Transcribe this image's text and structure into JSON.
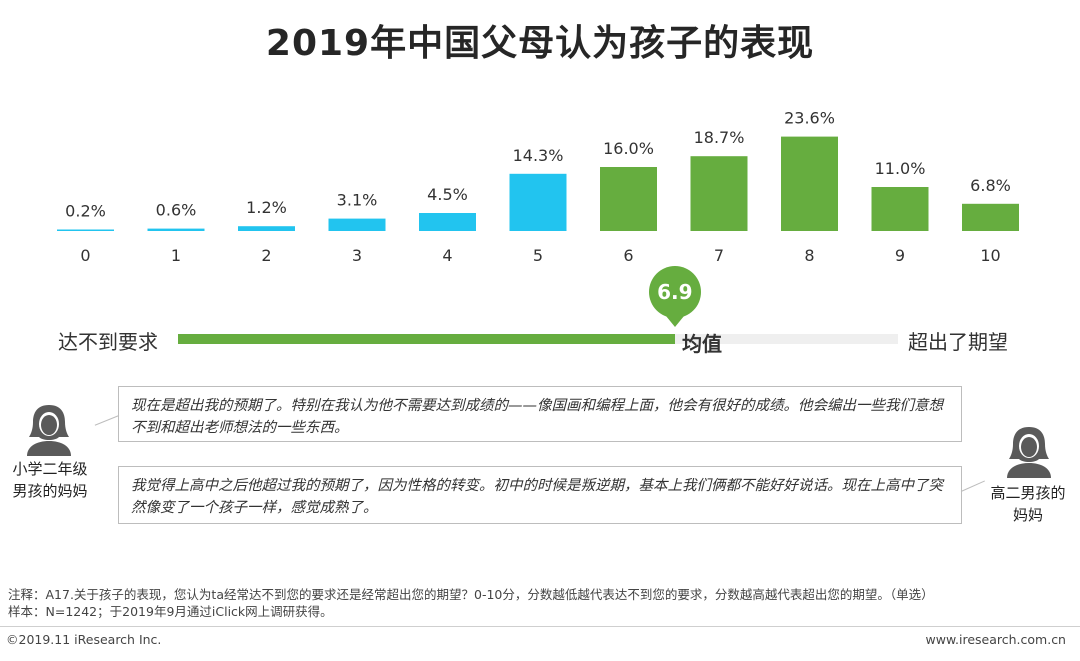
{
  "title": "2019年中国父母认为孩子的表现",
  "chart_data": {
    "type": "bar",
    "title": "2019年中国父母认为孩子的表现",
    "categories": [
      "0",
      "1",
      "2",
      "3",
      "4",
      "5",
      "6",
      "7",
      "8",
      "9",
      "10"
    ],
    "values": [
      0.2,
      0.6,
      1.2,
      3.1,
      4.5,
      14.3,
      16.0,
      18.7,
      23.6,
      11.0,
      6.8
    ],
    "labels": [
      "0.2%",
      "0.6%",
      "1.2%",
      "3.1%",
      "4.5%",
      "14.3%",
      "16.0%",
      "18.7%",
      "23.6%",
      "11.0%",
      "6.8%"
    ],
    "unit": "%",
    "colors": {
      "low": "#22c4ef",
      "high": "#66ad3f"
    },
    "high_from_category": 6,
    "ylim": [
      0,
      25
    ],
    "xlabel": "",
    "ylabel": ""
  },
  "scale": {
    "left_label": "达不到要求",
    "middle_label": "均值",
    "right_label": "超出了期望",
    "mean_value": 6.9,
    "mean_label": "6.9",
    "range": [
      0,
      10
    ],
    "track_color": "#efefef",
    "fill_color": "#66ad3f"
  },
  "quotes": [
    {
      "text": "现在是超出我的预期了。特别在我认为他不需要达到成绩的——像国画和编程上面，他会有很好的成绩。他会编出一些我们意想不到和超出老师想法的一些东西。"
    },
    {
      "text": "我觉得上高中之后他超过我的预期了，因为性格的转变。初中的时候是叛逆期，基本上我们俩都不能好好说话。现在上高中了突然像变了一个孩子一样，感觉成熟了。"
    }
  ],
  "people": [
    {
      "line1": "小学二年级",
      "line2": "男孩的妈妈",
      "icon": "person-icon"
    },
    {
      "line1": "高二男孩的",
      "line2": "妈妈",
      "icon": "person-icon"
    }
  ],
  "note": {
    "line1": "注释：A17.关于孩子的表现，您认为ta经常达不到您的要求还是经常超出您的期望？0-10分，分数越低越代表达不到您的要求，分数越高越代表超出您的期望。（单选）",
    "line2": "样本：N=1242；于2019年9月通过iClick网上调研获得。"
  },
  "footer": {
    "copyright": "©2019.11 iResearch Inc.",
    "site": "www.iresearch.com.cn"
  }
}
